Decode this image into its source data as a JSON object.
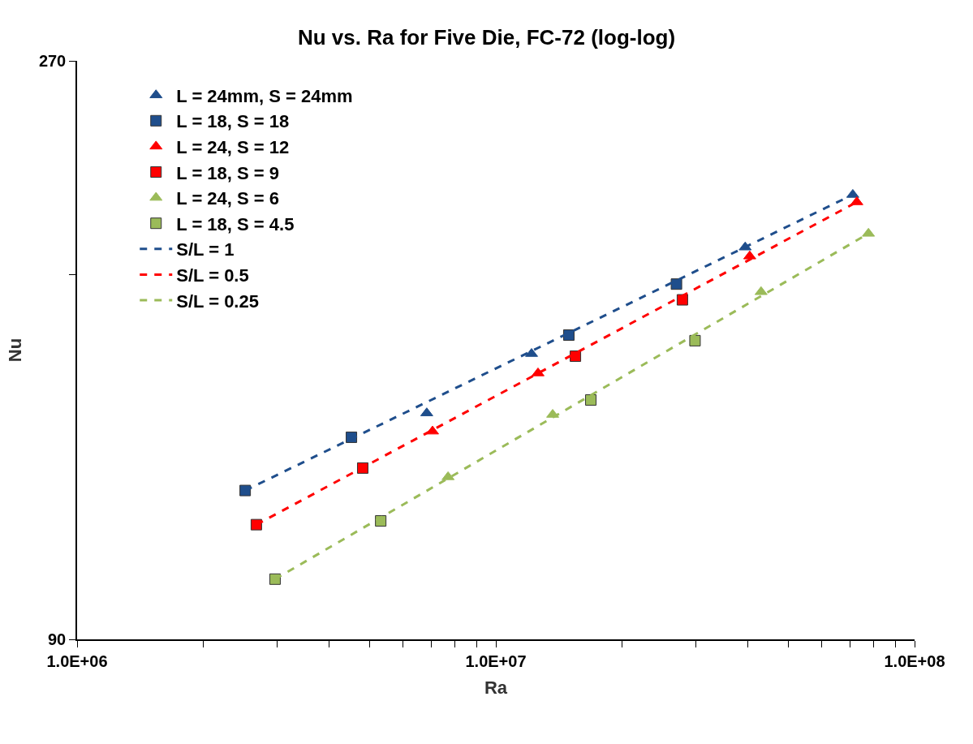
{
  "chart_data": {
    "type": "scatter",
    "title": "Nu vs. Ra for Five Die, FC-72 (log-log)",
    "xlabel": "Ra",
    "ylabel": "Nu",
    "log": "xy",
    "legend": "top left",
    "xlim": [
      1000000,
      100000000
    ],
    "xticks": [
      {
        "value": 1000000,
        "label": "1.0E+06"
      },
      {
        "value": 2000000,
        "label": null
      },
      {
        "value": 3000000,
        "label": null
      },
      {
        "value": 4000000,
        "label": null
      },
      {
        "value": 5000000,
        "label": null
      },
      {
        "value": 6000000,
        "label": null
      },
      {
        "value": 7000000,
        "label": null
      },
      {
        "value": 8000000,
        "label": null
      },
      {
        "value": 9000000,
        "label": null
      },
      {
        "value": 10000000,
        "label": "1.0E+07"
      },
      {
        "value": 20000000,
        "label": null
      },
      {
        "value": 30000000,
        "label": null
      },
      {
        "value": 40000000,
        "label": null
      },
      {
        "value": 50000000,
        "label": null
      },
      {
        "value": 60000000,
        "label": null
      },
      {
        "value": 70000000,
        "label": null
      },
      {
        "value": 80000000,
        "label": null
      },
      {
        "value": 90000000,
        "label": null
      },
      {
        "value": 100000000,
        "label": "1.0E+08"
      }
    ],
    "ylim": [
      90,
      270
    ],
    "yticks": [
      90,
      {
        "value": 180,
        "label": null
      },
      270
    ],
    "series": [
      {
        "name": "L = 24mm, S = 24mm",
        "marker": "triangle",
        "color": "#1f4e8c",
        "x": [
          6840000,
          12170000,
          39400000,
          71200000
        ],
        "values": [
          138.3,
          154.8,
          189.5,
          209.4
        ]
      },
      {
        "name": "L = 18, S = 18",
        "marker": "square",
        "color": "#1f4e8c",
        "x": [
          2520000,
          4520000,
          14940000,
          27000000
        ],
        "values": [
          119.4,
          132.1,
          160.4,
          176.7
        ]
      },
      {
        "name": "L = 24, S = 12",
        "marker": "triangle",
        "color": "#ff0000",
        "x": [
          7060000,
          12610000,
          40400000,
          72800000
        ],
        "values": [
          133.6,
          149.2,
          186.3,
          206.5
        ]
      },
      {
        "name": "L = 18, S = 9",
        "marker": "square",
        "color": "#ff0000",
        "x": [
          2680000,
          4810000,
          15490000,
          27900000
        ],
        "values": [
          111.9,
          124.6,
          154.1,
          171.5
        ]
      },
      {
        "name": "L = 24, S = 6",
        "marker": "triangle",
        "color": "#9bbb59",
        "x": [
          7690000,
          13670000,
          43000000,
          77600000
        ],
        "values": [
          122.5,
          137.9,
          174.1,
          194.5
        ]
      },
      {
        "name": "L = 18, S = 4.5",
        "marker": "square",
        "color": "#9bbb59",
        "x": [
          2970000,
          5310000,
          16860000,
          29900000
        ],
        "values": [
          100.9,
          112.7,
          141.8,
          158.7
        ]
      },
      {
        "name": "S/L = 1",
        "type": "line",
        "line_style": "dashed",
        "color": "#1f4e8c",
        "x": [
          2520000,
          71200000
        ],
        "values": [
          119.4,
          209.4
        ]
      },
      {
        "name": "S/L = 0.5",
        "type": "line",
        "line_style": "dashed",
        "color": "#ff0000",
        "x": [
          2680000,
          72800000
        ],
        "values": [
          111.9,
          206.5
        ]
      },
      {
        "name": "S/L = 0.25",
        "type": "line",
        "line_style": "dashed",
        "color": "#9bbb59",
        "x": [
          2970000,
          77600000
        ],
        "values": [
          100.9,
          194.5
        ]
      }
    ]
  }
}
